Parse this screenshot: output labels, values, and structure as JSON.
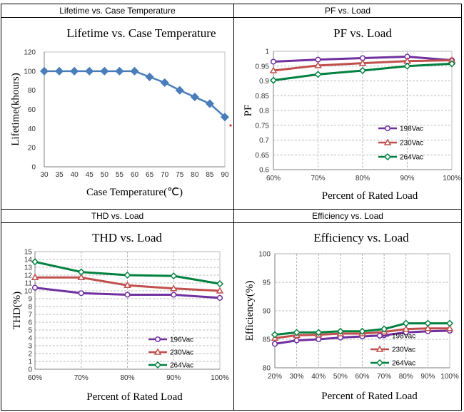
{
  "chart_data": [
    {
      "header": "Lifetime vs. Case Temperature",
      "type": "line",
      "title": "Lifetime vs. Case Temperature",
      "xlabel": "Case Temperature(℃)",
      "ylabel": "Lifetime(khours)",
      "categories": [
        "30",
        "35",
        "40",
        "45",
        "50",
        "55",
        "60",
        "65",
        "70",
        "75",
        "80",
        "85",
        "90"
      ],
      "ylim": [
        0,
        120
      ],
      "yticks": [
        "0",
        "20",
        "40",
        "60",
        "80",
        "100",
        "120"
      ],
      "grid": false,
      "series": [
        {
          "name": "Lifetime",
          "color": "#4a7ebb",
          "marker": "diamond-filled",
          "values": [
            100,
            100,
            100,
            100,
            100,
            100,
            100,
            94,
            88,
            80,
            73,
            66,
            52
          ]
        }
      ]
    },
    {
      "header": "PF vs. Load",
      "type": "line",
      "title": "PF vs. Load",
      "xlabel": "Percent of Rated Load",
      "ylabel": "PF",
      "categories": [
        "60%",
        "70%",
        "80%",
        "90%",
        "100%"
      ],
      "ylim": [
        0.6,
        1
      ],
      "yticks": [
        "0.6",
        "0.65",
        "0.7",
        "0.75",
        "0.8",
        "0.85",
        "0.9",
        "0.95",
        "1"
      ],
      "grid": true,
      "legend": "bottom-right",
      "series": [
        {
          "name": "198Vac",
          "color": "#7030a0",
          "marker": "circle",
          "values": [
            0.965,
            0.972,
            0.977,
            0.982,
            0.97
          ]
        },
        {
          "name": "230Vac",
          "color": "#c0504d",
          "marker": "triangle",
          "values": [
            0.935,
            0.952,
            0.96,
            0.967,
            0.97
          ]
        },
        {
          "name": "264Vac",
          "color": "#00813f",
          "marker": "diamond",
          "values": [
            0.902,
            0.922,
            0.935,
            0.95,
            0.958
          ]
        }
      ]
    },
    {
      "header": "THD vs. Load",
      "type": "line",
      "title": "THD vs. Load",
      "xlabel": "Percent of Rated Load",
      "ylabel": "THD(%)",
      "categories": [
        "60%",
        "70%",
        "80%",
        "90%",
        "100%"
      ],
      "ylim": [
        0,
        15
      ],
      "yticks": [
        "0",
        "1",
        "2",
        "3",
        "4",
        "5",
        "6",
        "7",
        "8",
        "9",
        "10",
        "11",
        "12",
        "13",
        "14",
        "15"
      ],
      "grid": true,
      "legend": "bottom-right",
      "series": [
        {
          "name": "196Vac",
          "color": "#7030a0",
          "marker": "circle",
          "values": [
            10.4,
            9.7,
            9.5,
            9.5,
            9.1
          ]
        },
        {
          "name": "230Vac",
          "color": "#c0504d",
          "marker": "triangle",
          "values": [
            11.7,
            11.7,
            10.7,
            10.3,
            10
          ]
        },
        {
          "name": "264Vac",
          "color": "#00813f",
          "marker": "diamond",
          "values": [
            13.7,
            12.4,
            12,
            11.9,
            10.9
          ]
        }
      ]
    },
    {
      "header": "Efficiency vs. Load",
      "type": "line",
      "title": "Efficiency vs. Load",
      "xlabel": "Percent of Rated Load",
      "ylabel": "Efficiency(%)",
      "categories": [
        "20%",
        "30%",
        "40%",
        "50%",
        "60%",
        "70%",
        "80%",
        "90%",
        "100%"
      ],
      "ylim": [
        80,
        100
      ],
      "yticks": [
        "80",
        "85",
        "90",
        "95",
        "100"
      ],
      "grid": true,
      "legend": "bottom-right",
      "series": [
        {
          "name": "198Vac",
          "color": "#7030a0",
          "marker": "circle",
          "values": [
            84.2,
            84.8,
            85,
            85.3,
            85.5,
            85.7,
            86.2,
            86.4,
            86.5
          ]
        },
        {
          "name": "230Vac",
          "color": "#c0504d",
          "marker": "triangle",
          "values": [
            85.2,
            85.7,
            85.8,
            86,
            86,
            86.3,
            86.8,
            86.9,
            86.9
          ]
        },
        {
          "name": "264Vac",
          "color": "#00813f",
          "marker": "diamond",
          "values": [
            85.8,
            86.2,
            86.2,
            86.4,
            86.4,
            86.8,
            87.8,
            87.8,
            87.8
          ]
        }
      ]
    }
  ]
}
